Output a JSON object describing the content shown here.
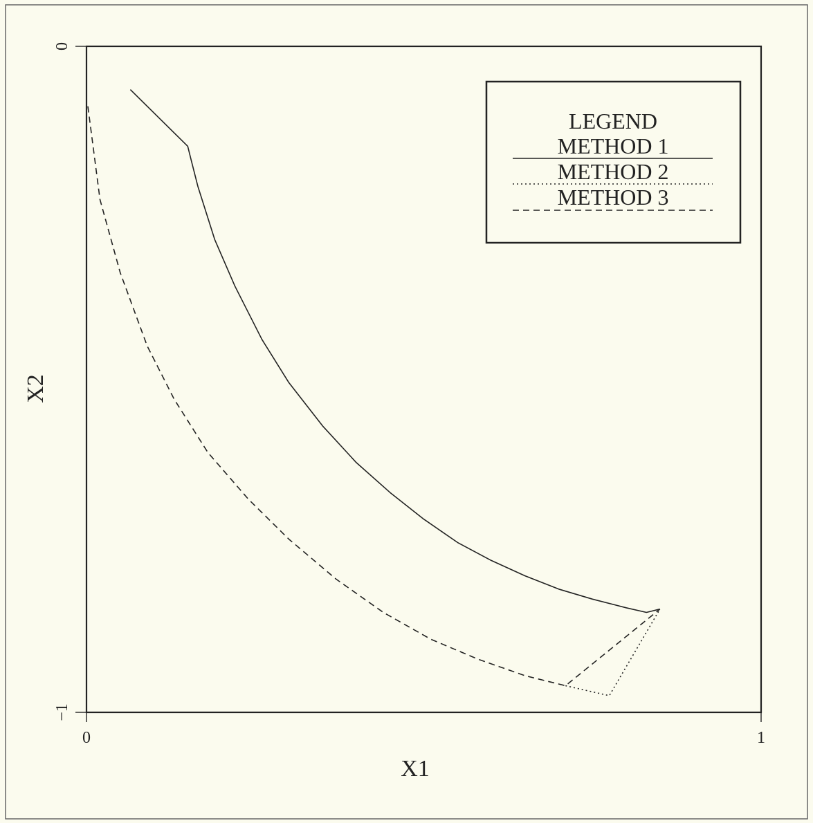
{
  "chart_data": {
    "type": "line",
    "title": "",
    "xlabel": "X1",
    "ylabel": "X2",
    "xlim": [
      0,
      1
    ],
    "ylim": [
      -1,
      0
    ],
    "x_ticks": [
      {
        "value": 0,
        "label": "0"
      },
      {
        "value": 1,
        "label": "1"
      }
    ],
    "y_ticks": [
      {
        "value": 0,
        "label": "0"
      },
      {
        "value": -1,
        "label": "−1"
      }
    ],
    "grid": false,
    "legend": {
      "title": "LEGEND",
      "placement": "top-right",
      "entries": [
        "METHOD 1",
        "METHOD 2",
        "METHOD 3"
      ]
    },
    "series": [
      {
        "name": "METHOD 1",
        "style": "solid",
        "x": [
          0.065,
          0.15,
          0.155,
          0.165,
          0.19,
          0.22,
          0.26,
          0.3,
          0.35,
          0.4,
          0.45,
          0.5,
          0.55,
          0.6,
          0.65,
          0.7,
          0.75,
          0.8,
          0.83,
          0.85
        ],
        "y": [
          -0.065,
          -0.15,
          -0.17,
          -0.21,
          -0.29,
          -0.36,
          -0.44,
          -0.505,
          -0.57,
          -0.625,
          -0.67,
          -0.71,
          -0.745,
          -0.772,
          -0.795,
          -0.815,
          -0.83,
          -0.843,
          -0.85,
          -0.845
        ]
      },
      {
        "name": "METHOD 2",
        "style": "dotted",
        "x": [
          0.71,
          0.775,
          0.85
        ],
        "y": [
          -0.96,
          -0.975,
          -0.845
        ]
      },
      {
        "name": "METHOD 3",
        "style": "dashed",
        "x": [
          0.002,
          0.02,
          0.05,
          0.09,
          0.13,
          0.18,
          0.24,
          0.3,
          0.37,
          0.44,
          0.51,
          0.58,
          0.65,
          0.71,
          0.85
        ],
        "y": [
          -0.09,
          -0.23,
          -0.34,
          -0.45,
          -0.53,
          -0.61,
          -0.68,
          -0.74,
          -0.8,
          -0.85,
          -0.89,
          -0.92,
          -0.945,
          -0.96,
          -0.845
        ]
      }
    ]
  }
}
